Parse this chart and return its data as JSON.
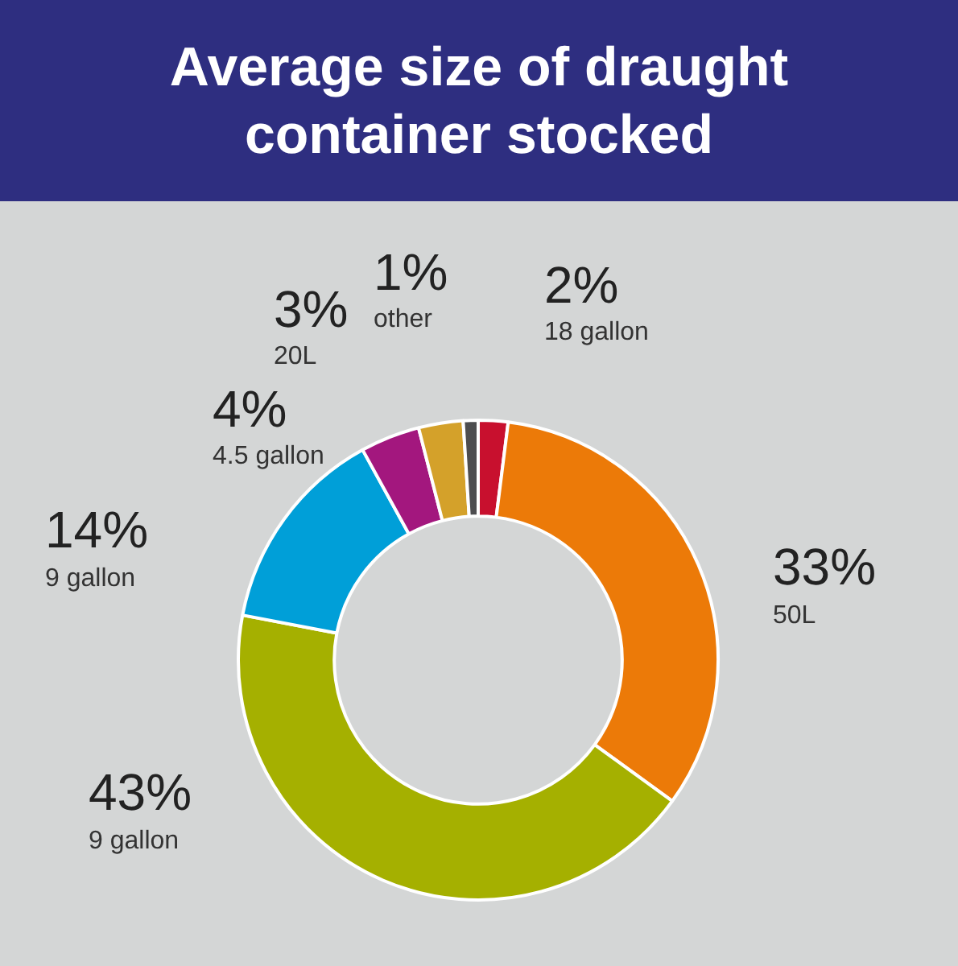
{
  "chart_data": {
    "type": "donut",
    "title": "Average size of draught container stocked",
    "categories": [
      "18 gallon",
      "50L",
      "9 gallon",
      "9 gallon",
      "4.5 gallon",
      "20L",
      "other"
    ],
    "values": [
      2,
      33,
      43,
      14,
      4,
      3,
      1
    ],
    "value_labels": [
      "2%",
      "33%",
      "43%",
      "14%",
      "4%",
      "3%",
      "1%"
    ],
    "colors": [
      "#c8102e",
      "#ec7a08",
      "#a5b000",
      "#009fd8",
      "#a3177e",
      "#d4a12a",
      "#4d4d4f"
    ],
    "legend": false
  }
}
